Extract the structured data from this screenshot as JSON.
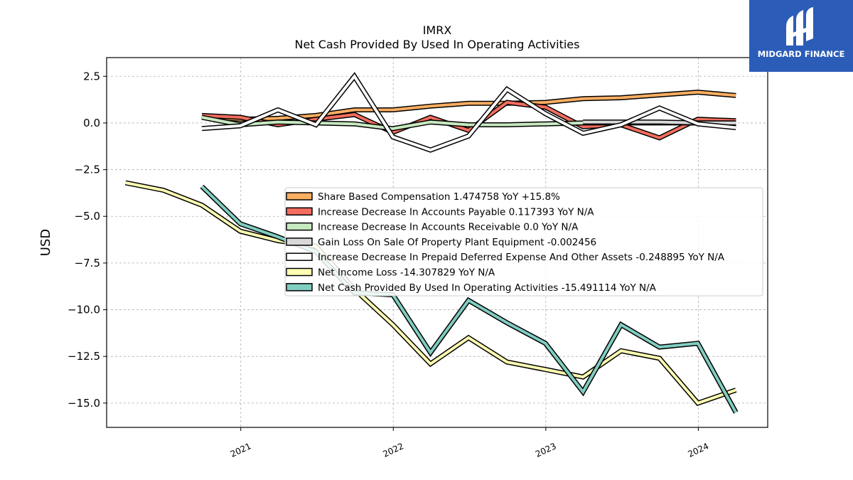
{
  "brand": {
    "name": "MIDGARD FINANCE"
  },
  "chart_data": {
    "type": "line",
    "title": "IMRX",
    "subtitle": "Net Cash Provided By Used In Operating Activities",
    "xlabel": "",
    "ylabel": "USD",
    "ylim": [
      -16.3,
      3.5
    ],
    "xlim": [
      "2020-02-15",
      "2024-06-15"
    ],
    "y_ticks": [
      2.5,
      0.0,
      -2.5,
      -5.0,
      -7.5,
      -10.0,
      -12.5,
      -15.0
    ],
    "y_tick_labels": [
      "2.5",
      "0.0",
      "−2.5",
      "−5.0",
      "−7.5",
      "−10.0",
      "−12.5",
      "−15.0"
    ],
    "x_ticks": [
      "2021-01-01",
      "2022-01-01",
      "2023-01-01",
      "2024-01-01"
    ],
    "x_tick_labels": [
      "2021",
      "2022",
      "2023",
      "2024"
    ],
    "grid": true,
    "legend_position": "center-right",
    "series": [
      {
        "name": "Share Based Compensation",
        "legend": "Share Based Compensation  1.474758 YoY +15.8%",
        "color": "#fdae61",
        "points": [
          [
            "2020-09-30",
            0.35
          ],
          [
            "2020-12-31",
            0.2
          ],
          [
            "2021-03-31",
            0.25
          ],
          [
            "2021-06-30",
            0.4
          ],
          [
            "2021-09-30",
            0.7
          ],
          [
            "2021-12-31",
            0.7
          ],
          [
            "2022-03-31",
            0.9
          ],
          [
            "2022-06-30",
            1.05
          ],
          [
            "2022-09-30",
            1.05
          ],
          [
            "2022-12-31",
            1.1
          ],
          [
            "2023-03-31",
            1.3
          ],
          [
            "2023-06-30",
            1.35
          ],
          [
            "2023-09-30",
            1.5
          ],
          [
            "2023-12-31",
            1.65
          ],
          [
            "2024-03-31",
            1.47
          ]
        ]
      },
      {
        "name": "Increase Decrease In Accounts Payable",
        "legend": "Increase Decrease In Accounts Payable  0.117393 YoY N/A",
        "color": "#f46d5e",
        "points": [
          [
            "2020-09-30",
            0.4
          ],
          [
            "2020-12-31",
            0.3
          ],
          [
            "2021-03-31",
            -0.1
          ],
          [
            "2021-06-30",
            0.2
          ],
          [
            "2021-09-30",
            0.45
          ],
          [
            "2021-12-31",
            -0.5
          ],
          [
            "2022-03-31",
            0.3
          ],
          [
            "2022-06-30",
            -0.4
          ],
          [
            "2022-09-30",
            1.1
          ],
          [
            "2022-12-31",
            0.85
          ],
          [
            "2023-03-31",
            -0.2
          ],
          [
            "2023-06-30",
            -0.1
          ],
          [
            "2023-09-30",
            -0.8
          ],
          [
            "2023-12-31",
            0.2
          ],
          [
            "2024-03-31",
            0.12
          ]
        ]
      },
      {
        "name": "Increase Decrease In Accounts Receivable",
        "legend": "Increase Decrease In Accounts Receivable  0.0 YoY N/A",
        "color": "#c7e9c0",
        "points": [
          [
            "2020-09-30",
            0.3
          ],
          [
            "2020-12-31",
            -0.1
          ],
          [
            "2021-03-31",
            0.05
          ],
          [
            "2021-06-30",
            0.0
          ],
          [
            "2021-09-30",
            -0.05
          ],
          [
            "2021-12-31",
            -0.3
          ],
          [
            "2022-03-31",
            0.05
          ],
          [
            "2022-06-30",
            -0.1
          ],
          [
            "2022-09-30",
            -0.1
          ],
          [
            "2022-12-31",
            -0.05
          ],
          [
            "2023-03-31",
            0.0
          ],
          [
            "2023-06-30",
            0.0
          ],
          [
            "2023-09-30",
            0.0
          ],
          [
            "2023-12-31",
            0.0
          ],
          [
            "2024-03-31",
            0.0
          ]
        ]
      },
      {
        "name": "Gain Loss On Sale Of Property Plant Equipment",
        "legend": "Gain Loss On Sale Of Property Plant Equipment  -0.002456",
        "color": "#d9d9d9",
        "points": [
          [
            "2023-03-31",
            0.05
          ],
          [
            "2023-06-30",
            0.05
          ],
          [
            "2023-09-30",
            0.05
          ],
          [
            "2023-12-31",
            0.0
          ],
          [
            "2024-03-31",
            0.0
          ]
        ]
      },
      {
        "name": "Increase Decrease In Prepaid Deferred Expense And Other Assets",
        "legend": "Increase Decrease In Prepaid Deferred Expense And Other Assets  -0.248895 YoY N/A",
        "color": "#ffffff",
        "points": [
          [
            "2020-09-30",
            -0.3
          ],
          [
            "2020-12-31",
            -0.15
          ],
          [
            "2021-03-31",
            0.7
          ],
          [
            "2021-06-30",
            -0.1
          ],
          [
            "2021-09-30",
            2.5
          ],
          [
            "2021-12-31",
            -0.75
          ],
          [
            "2022-03-31",
            -1.45
          ],
          [
            "2022-06-30",
            -0.7
          ],
          [
            "2022-09-30",
            1.8
          ],
          [
            "2022-12-31",
            0.5
          ],
          [
            "2023-03-31",
            -0.55
          ],
          [
            "2023-06-30",
            -0.1
          ],
          [
            "2023-09-30",
            0.8
          ],
          [
            "2023-12-31",
            -0.05
          ],
          [
            "2024-03-31",
            -0.25
          ]
        ]
      },
      {
        "name": "Net Income Loss",
        "legend": "Net Income Loss  -14.307829 YoY N/A",
        "color": "#ffffb3",
        "points": [
          [
            "2020-03-31",
            -3.2
          ],
          [
            "2020-06-30",
            -3.6
          ],
          [
            "2020-09-30",
            -4.4
          ],
          [
            "2020-12-31",
            -5.8
          ],
          [
            "2021-03-31",
            -6.3
          ],
          [
            "2021-06-30",
            -6.6
          ],
          [
            "2021-09-30",
            -8.9
          ],
          [
            "2021-12-31",
            -10.8
          ],
          [
            "2022-03-31",
            -12.9
          ],
          [
            "2022-06-30",
            -11.5
          ],
          [
            "2022-09-30",
            -12.8
          ],
          [
            "2022-12-31",
            -13.2
          ],
          [
            "2023-03-31",
            -13.6
          ],
          [
            "2023-06-30",
            -12.2
          ],
          [
            "2023-09-30",
            -12.6
          ],
          [
            "2023-12-31",
            -15.0
          ],
          [
            "2024-03-31",
            -14.3
          ]
        ]
      },
      {
        "name": "Net Cash Provided By Used In Operating Activities",
        "legend": "Net Cash Provided By Used In Operating Activities  -15.491114 YoY N/A",
        "color": "#80cdc1",
        "points": [
          [
            "2020-09-30",
            -3.4
          ],
          [
            "2020-12-31",
            -5.4
          ],
          [
            "2021-03-31",
            -6.1
          ],
          [
            "2021-06-30",
            -6.9
          ],
          [
            "2021-09-30",
            -9.1
          ],
          [
            "2021-12-31",
            -9.2
          ],
          [
            "2022-03-31",
            -12.3
          ],
          [
            "2022-06-30",
            -9.5
          ],
          [
            "2022-09-30",
            -10.7
          ],
          [
            "2022-12-31",
            -11.8
          ],
          [
            "2023-03-31",
            -14.4
          ],
          [
            "2023-06-30",
            -10.8
          ],
          [
            "2023-09-30",
            -12.0
          ],
          [
            "2023-12-31",
            -11.8
          ],
          [
            "2024-03-31",
            -15.5
          ]
        ]
      }
    ]
  }
}
